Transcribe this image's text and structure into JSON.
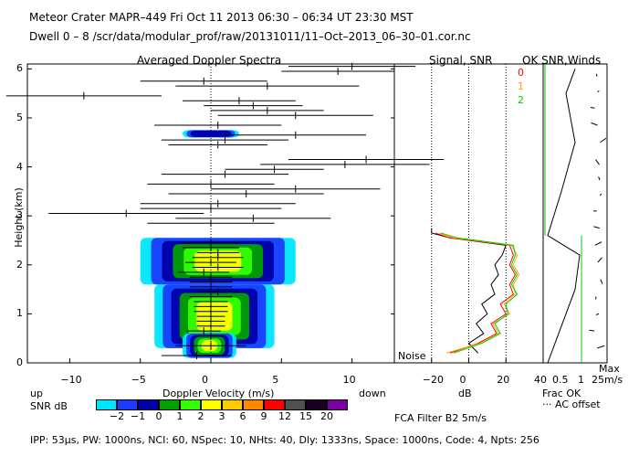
{
  "header": {
    "line1": "Meteor Crater   MAPR–449   Fri Oct 11 2013 06:30 – 06:34 UT 23:30 MST",
    "line2": "Dwell   0 –   8    /scr/data/modular_prof/raw/20131011/11–Oct–2013_06–30–01.cor.nc"
  },
  "footer": {
    "params": "IPP:  53μs,   PW: 1000ns,   NCI:  60,   NSpec: 10,  NHts: 40,   Dly: 1333ns,   Space: 1000ns,   Code: 4,   Npts: 256",
    "filter": "FCA Filter B2   5m/s"
  },
  "colorbar": {
    "label": "SNR dB",
    "ticks": [
      "−2",
      "−1",
      "0",
      "1",
      "2",
      "3",
      "6",
      "9",
      "12",
      "15",
      "20"
    ],
    "colors": [
      "#00e5ff",
      "#1a3cff",
      "#0000a8",
      "#00a000",
      "#33ff00",
      "#ffff00",
      "#ffcc00",
      "#ff8800",
      "#ff0000",
      "#505050",
      "#1a0020",
      "#7a00a0"
    ]
  },
  "chart_data": [
    {
      "type": "spectra",
      "title": "Averaged Doppler Spectra",
      "xlabel": "Doppler Velocity (m/s)",
      "ylabel": "Height (km)",
      "xlim": [
        -13,
        13
      ],
      "ylim": [
        0,
        6.1
      ],
      "xticks": [
        "−10",
        "−5",
        "0",
        "5",
        "10"
      ],
      "yticks": [
        "0",
        "1",
        "2",
        "3",
        "4",
        "5",
        "6"
      ],
      "up_label": "up",
      "down_label": "down",
      "markers": [
        {
          "h": 6.05,
          "v": 10.0,
          "w": 4.5
        },
        {
          "h": 5.95,
          "v": 9.0,
          "w": 4.0
        },
        {
          "h": 5.75,
          "v": -0.5,
          "w": 4.5
        },
        {
          "h": 5.65,
          "v": 4.0,
          "w": 6.5
        },
        {
          "h": 5.45,
          "v": -9.0,
          "w": 5.5
        },
        {
          "h": 5.35,
          "v": 2.0,
          "w": 4.0
        },
        {
          "h": 5.25,
          "v": 3.0,
          "w": 3.5
        },
        {
          "h": 5.15,
          "v": 4.0,
          "w": 4.0
        },
        {
          "h": 5.05,
          "v": 6.0,
          "w": 5.5
        },
        {
          "h": 4.85,
          "v": 0.5,
          "w": 4.5
        },
        {
          "h": 4.65,
          "v": 6.0,
          "w": 5.0
        },
        {
          "h": 4.55,
          "v": 1.0,
          "w": 4.5
        },
        {
          "h": 4.45,
          "v": 0.5,
          "w": 3.5
        },
        {
          "h": 4.15,
          "v": 11.0,
          "w": 5.5
        },
        {
          "h": 4.05,
          "v": 9.5,
          "w": 6.0
        },
        {
          "h": 3.95,
          "v": 4.5,
          "w": 3.5
        },
        {
          "h": 3.85,
          "v": 1.0,
          "w": 4.5
        },
        {
          "h": 3.65,
          "v": 0.0,
          "w": 4.5
        },
        {
          "h": 3.55,
          "v": 6.0,
          "w": 6.0
        },
        {
          "h": 3.45,
          "v": 2.5,
          "w": 5.5
        },
        {
          "h": 3.25,
          "v": 0.5,
          "w": 5.5
        },
        {
          "h": 3.15,
          "v": 0.0,
          "w": 5.0
        },
        {
          "h": 3.05,
          "v": -6.0,
          "w": 5.5
        },
        {
          "h": 2.95,
          "v": 3.0,
          "w": 5.5
        },
        {
          "h": 2.85,
          "v": 0.0,
          "w": 4.5
        },
        {
          "h": 2.45,
          "v": 0.0,
          "w": 2.0
        },
        {
          "h": 2.35,
          "v": 0.0,
          "w": 2.0
        },
        {
          "h": 2.25,
          "v": 0.5,
          "w": 1.5
        },
        {
          "h": 2.15,
          "v": 0.5,
          "w": 1.8
        },
        {
          "h": 2.05,
          "v": 0.0,
          "w": 1.8
        },
        {
          "h": 1.95,
          "v": 0.5,
          "w": 1.8
        },
        {
          "h": 1.85,
          "v": -0.5,
          "w": 1.8
        },
        {
          "h": 1.75,
          "v": 0.0,
          "w": 1.5
        },
        {
          "h": 1.65,
          "v": 0.0,
          "w": 1.5
        },
        {
          "h": 1.55,
          "v": 0.0,
          "w": 1.5
        },
        {
          "h": 1.45,
          "v": 0.5,
          "w": 1.5
        },
        {
          "h": 1.35,
          "v": 0.0,
          "w": 1.5
        },
        {
          "h": 1.25,
          "v": 0.0,
          "w": 1.2
        },
        {
          "h": 1.15,
          "v": 0.0,
          "w": 1.2
        },
        {
          "h": 1.05,
          "v": 0.0,
          "w": 1.2
        },
        {
          "h": 0.95,
          "v": 0.0,
          "w": 1.0
        },
        {
          "h": 0.85,
          "v": 0.0,
          "w": 1.0
        },
        {
          "h": 0.75,
          "v": 0.0,
          "w": 1.0
        },
        {
          "h": 0.65,
          "v": -0.5,
          "w": 1.2
        },
        {
          "h": 0.55,
          "v": 0.0,
          "w": 1.0
        },
        {
          "h": 0.35,
          "v": 0.0,
          "w": 2.5
        },
        {
          "h": 0.15,
          "v": -1.0,
          "w": 2.5
        }
      ],
      "echo_regions": [
        {
          "h_min": 1.6,
          "h_max": 2.55,
          "v_min": -5.0,
          "v_max": 6.0
        },
        {
          "h_min": 0.3,
          "h_max": 1.6,
          "v_min": -4.0,
          "v_max": 4.5
        },
        {
          "h_min": 0.1,
          "h_max": 0.6,
          "v_min": -2.0,
          "v_max": 1.8
        },
        {
          "h_min": 4.6,
          "h_max": 4.75,
          "v_min": -2.0,
          "v_max": 2.0
        }
      ]
    },
    {
      "type": "line",
      "title": "Signal, SNR",
      "xlabel": "dB",
      "xlim": [
        -40,
        40
      ],
      "ylim": [
        0,
        6.1
      ],
      "xticks": [
        "−20",
        "0",
        "20",
        "40"
      ],
      "noise_label": "Noise",
      "series": [
        {
          "name": "signal",
          "color": "#000000",
          "h": [
            0.2,
            0.4,
            0.6,
            0.8,
            1.0,
            1.2,
            1.4,
            1.6,
            1.8,
            2.0,
            2.2,
            2.4,
            2.55,
            2.65,
            2.75
          ],
          "v": [
            5,
            0,
            8,
            4,
            10,
            7,
            14,
            12,
            16,
            14,
            18,
            20,
            -10,
            -20,
            -20
          ]
        },
        {
          "name": "0",
          "color": "#ff0000",
          "h": [
            0.2,
            0.4,
            0.6,
            0.8,
            1.0,
            1.2,
            1.4,
            1.6,
            1.8,
            2.0,
            2.2,
            2.4,
            2.55,
            2.65
          ],
          "v": [
            -10,
            5,
            15,
            12,
            20,
            17,
            24,
            22,
            25,
            22,
            24,
            22,
            -10,
            -18
          ]
        },
        {
          "name": "1",
          "color": "#ffa500",
          "h": [
            0.2,
            0.4,
            0.6,
            0.8,
            1.0,
            1.2,
            1.4,
            1.6,
            1.8,
            2.0,
            2.2,
            2.4,
            2.55,
            2.65
          ],
          "v": [
            -12,
            6,
            16,
            13,
            22,
            19,
            25,
            24,
            27,
            24,
            26,
            23,
            -8,
            -16
          ]
        },
        {
          "name": "2",
          "color": "#00cc00",
          "h": [
            0.2,
            0.4,
            0.6,
            0.8,
            1.0,
            1.2,
            1.4,
            1.6,
            1.8,
            2.0,
            2.2,
            2.4,
            2.55,
            2.65
          ],
          "v": [
            -8,
            7,
            17,
            14,
            21,
            20,
            26,
            23,
            26,
            23,
            25,
            24,
            -6,
            -15
          ]
        }
      ],
      "legend": [
        "0",
        "1",
        "2"
      ]
    },
    {
      "type": "line",
      "title": "OK  SNR,Winds",
      "xticks": [
        "0.5",
        "1"
      ],
      "max_label": "Max",
      "max_value": "25m/s",
      "frac_ok_label": "Frac OK",
      "ac_offset_label": "··· AC offset"
    }
  ]
}
